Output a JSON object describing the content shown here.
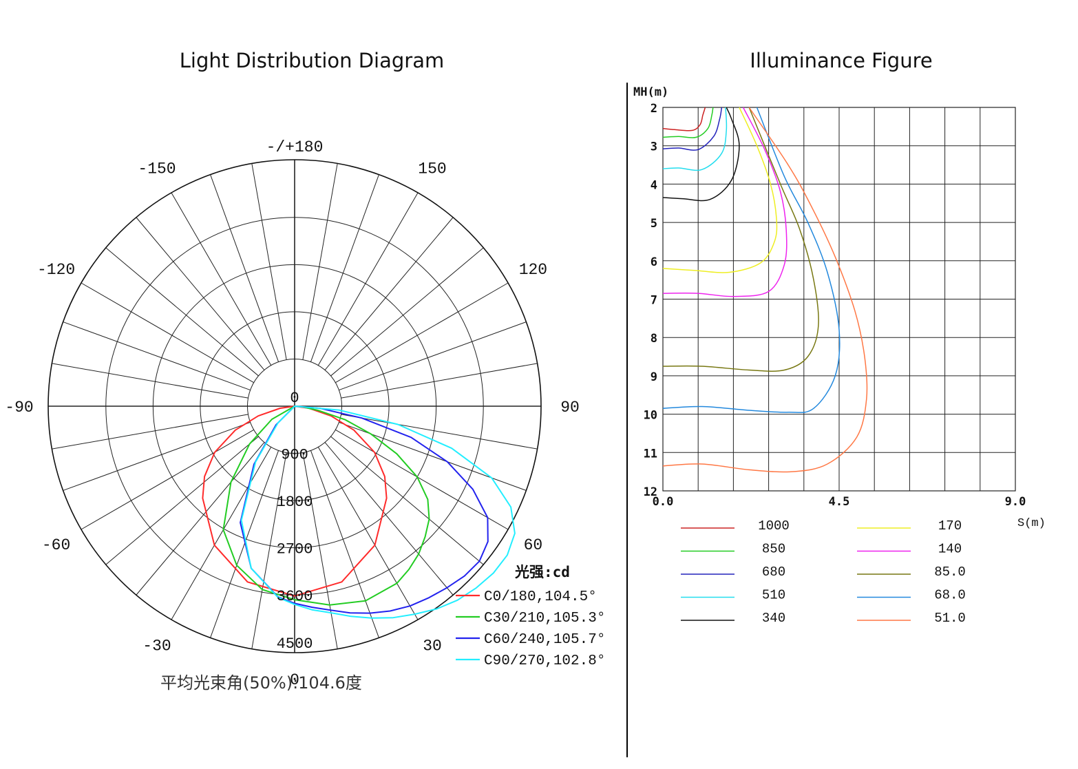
{
  "titles": {
    "left": "Light Distribution Diagram",
    "right": "Illuminance Figure"
  },
  "chart_data": [
    {
      "type": "polar",
      "title": "Light Distribution Diagram",
      "angle_labels": [
        "-/+180",
        "150",
        "120",
        "90",
        "60",
        "30",
        "0",
        "-30",
        "-60",
        "-90",
        "-120",
        "-150"
      ],
      "angle_values": [
        180,
        150,
        120,
        90,
        60,
        30,
        0,
        -30,
        -60,
        -90,
        -120,
        -150
      ],
      "radial_labels": [
        "900",
        "1800",
        "2700",
        "3600",
        "4500"
      ],
      "radial_values": [
        900,
        1800,
        2700,
        3600,
        4500
      ],
      "rmax": 4700,
      "unit_label": "光强:cd",
      "footnote": "平均光束角(50%):104.6度",
      "series": [
        {
          "name": "C0/180,104.5°",
          "color": "#ff2a2a",
          "angles": [
            0,
            15,
            30,
            45,
            52,
            60,
            68,
            75,
            82,
            90
          ],
          "values": [
            3620,
            3470,
            3060,
            2480,
            2180,
            1760,
            1220,
            720,
            280,
            0
          ],
          "symmetric": true
        },
        {
          "name": "C30/210,105.3°",
          "color": "#22cc22",
          "angles": [
            -60,
            -50,
            -40,
            -30,
            -20,
            -10,
            0,
            10,
            20,
            30,
            35,
            40,
            45,
            50,
            55,
            60,
            65,
            70,
            75,
            80,
            85,
            90
          ],
          "values": [
            500,
            1120,
            1890,
            2720,
            3230,
            3550,
            3690,
            3850,
            3950,
            3900,
            3800,
            3680,
            3520,
            3350,
            3100,
            2700,
            2150,
            1550,
            1000,
            450,
            150,
            0
          ]
        },
        {
          "name": "C60/240,105.7°",
          "color": "#2222ee",
          "angles": [
            -45,
            -35,
            -25,
            -15,
            -5,
            0,
            5,
            10,
            15,
            20,
            25,
            30,
            35,
            40,
            45,
            50,
            55,
            60,
            65,
            70,
            75,
            80,
            85,
            90
          ],
          "values": [
            500,
            1350,
            2450,
            3200,
            3650,
            3760,
            3850,
            3950,
            4080,
            4200,
            4310,
            4400,
            4460,
            4520,
            4580,
            4600,
            4500,
            4250,
            3750,
            3100,
            2300,
            1300,
            500,
            0
          ]
        },
        {
          "name": "C90/270,102.8°",
          "color": "#22eeff",
          "angles": [
            -45,
            -35,
            -25,
            -15,
            -5,
            0,
            5,
            10,
            15,
            20,
            25,
            30,
            35,
            40,
            45,
            50,
            55,
            60,
            65,
            70,
            75,
            80,
            85,
            90
          ],
          "values": [
            450,
            1300,
            2400,
            3200,
            3660,
            3780,
            3900,
            4000,
            4150,
            4300,
            4450,
            4580,
            4720,
            4830,
            4900,
            4950,
            4950,
            4850,
            4550,
            4000,
            3100,
            2000,
            850,
            0
          ]
        }
      ]
    },
    {
      "type": "line",
      "title": "Illuminance Figure",
      "xlabel": "S(m)",
      "ylabel": "MH(m)",
      "xlim": [
        0,
        9
      ],
      "ylim": [
        2,
        12
      ],
      "x_tick_labels": [
        "0.0",
        "4.5",
        "9.0"
      ],
      "x_tick_values": [
        0,
        4.5,
        9
      ],
      "y_tick_labels": [
        "2",
        "3",
        "4",
        "5",
        "6",
        "7",
        "8",
        "9",
        "10",
        "11",
        "12"
      ],
      "y_tick_values": [
        2,
        3,
        4,
        5,
        6,
        7,
        8,
        9,
        10,
        11,
        12
      ],
      "grid_x_step": 0.9,
      "series": [
        {
          "name": "1000",
          "color": "#cc2222",
          "points": [
            [
              0,
              2.55
            ],
            [
              0.3,
              2.58
            ],
            [
              0.75,
              2.6
            ],
            [
              0.95,
              2.45
            ],
            [
              1.02,
              2.2
            ],
            [
              1.08,
              2.0
            ]
          ]
        },
        {
          "name": "850",
          "color": "#22cc22",
          "points": [
            [
              0,
              2.78
            ],
            [
              0.4,
              2.76
            ],
            [
              0.85,
              2.78
            ],
            [
              1.15,
              2.55
            ],
            [
              1.25,
              2.2
            ],
            [
              1.28,
              2.0
            ]
          ]
        },
        {
          "name": "680",
          "color": "#2222bb",
          "points": [
            [
              0,
              3.08
            ],
            [
              0.4,
              3.06
            ],
            [
              0.9,
              3.1
            ],
            [
              1.3,
              2.75
            ],
            [
              1.45,
              2.3
            ],
            [
              1.5,
              2.0
            ]
          ]
        },
        {
          "name": "510",
          "color": "#22ddee",
          "points": [
            [
              0,
              3.6
            ],
            [
              0.4,
              3.58
            ],
            [
              1.0,
              3.62
            ],
            [
              1.5,
              3.2
            ],
            [
              1.62,
              2.6
            ],
            [
              1.6,
              2.0
            ]
          ]
        },
        {
          "name": "340",
          "color": "#111111",
          "points": [
            [
              0,
              4.35
            ],
            [
              0.5,
              4.38
            ],
            [
              1.2,
              4.4
            ],
            [
              1.75,
              3.9
            ],
            [
              1.95,
              3.0
            ],
            [
              1.75,
              2.3
            ],
            [
              1.62,
              2.0
            ]
          ]
        },
        {
          "name": "170",
          "color": "#eeee22",
          "points": [
            [
              0,
              6.2
            ],
            [
              0.8,
              6.25
            ],
            [
              1.7,
              6.3
            ],
            [
              2.5,
              6.05
            ],
            [
              2.85,
              5.5
            ],
            [
              2.9,
              4.9
            ],
            [
              2.75,
              4.0
            ],
            [
              2.4,
              3.0
            ],
            [
              1.95,
              2.0
            ]
          ]
        },
        {
          "name": "140",
          "color": "#ee22ee",
          "points": [
            [
              0,
              6.85
            ],
            [
              0.9,
              6.85
            ],
            [
              1.8,
              6.93
            ],
            [
              2.7,
              6.8
            ],
            [
              3.1,
              6.1
            ],
            [
              3.15,
              5.2
            ],
            [
              3.0,
              4.2
            ],
            [
              2.6,
              3.1
            ],
            [
              2.05,
              2.0
            ]
          ]
        },
        {
          "name": "85.0",
          "color": "#777711",
          "points": [
            [
              0,
              8.75
            ],
            [
              1.0,
              8.75
            ],
            [
              2.2,
              8.85
            ],
            [
              3.1,
              8.85
            ],
            [
              3.7,
              8.5
            ],
            [
              3.97,
              7.7
            ],
            [
              3.85,
              6.5
            ],
            [
              3.5,
              5.2
            ],
            [
              3.0,
              4.0
            ],
            [
              2.2,
              2.0
            ]
          ]
        },
        {
          "name": "68.0",
          "color": "#2288dd",
          "points": [
            [
              0,
              9.85
            ],
            [
              1.0,
              9.8
            ],
            [
              2.2,
              9.9
            ],
            [
              3.2,
              9.95
            ],
            [
              3.85,
              9.85
            ],
            [
              4.4,
              9.0
            ],
            [
              4.5,
              7.8
            ],
            [
              4.2,
              6.3
            ],
            [
              3.7,
              5.0
            ],
            [
              3.1,
              3.8
            ],
            [
              2.4,
              2.0
            ]
          ]
        },
        {
          "name": "51.0",
          "color": "#ff7744",
          "points": [
            [
              0,
              11.35
            ],
            [
              1.0,
              11.3
            ],
            [
              2.2,
              11.45
            ],
            [
              3.3,
              11.5
            ],
            [
              4.2,
              11.3
            ],
            [
              4.95,
              10.6
            ],
            [
              5.2,
              9.6
            ],
            [
              5.15,
              8.5
            ],
            [
              4.9,
              7.3
            ],
            [
              4.4,
              5.9
            ],
            [
              3.8,
              4.6
            ],
            [
              3.2,
              3.5
            ],
            [
              2.2,
              2.0
            ]
          ]
        }
      ]
    }
  ]
}
